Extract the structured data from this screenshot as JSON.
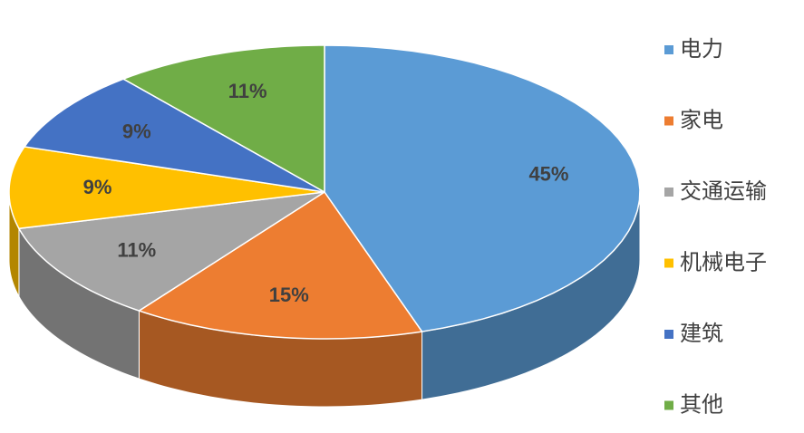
{
  "chart_data": {
    "type": "pie3d",
    "categories": [
      "电力",
      "家电",
      "交通运输",
      "机械电子",
      "建筑",
      "其他"
    ],
    "values": [
      45,
      15,
      11,
      9,
      9,
      11
    ],
    "value_labels": [
      "45%",
      "15%",
      "11%",
      "9%",
      "9%",
      "11%"
    ],
    "colors": [
      "#5b9bd5",
      "#ed7d31",
      "#a5a5a5",
      "#ffc000",
      "#4472c4",
      "#70ad47"
    ],
    "legend": "right"
  }
}
